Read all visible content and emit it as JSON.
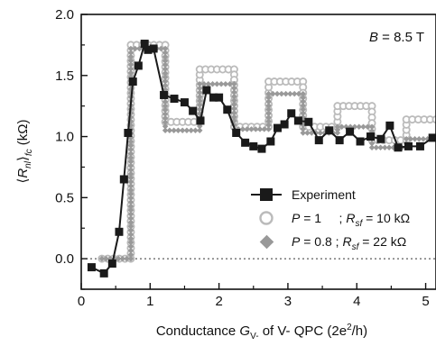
{
  "chart_data": {
    "type": "line",
    "xlabel": {
      "prefix": "Conductance ",
      "var": "G",
      "sub": "V-",
      "suffix": " of V- QPC  (2e",
      "sup": "2",
      "end": "/h)"
    },
    "ylabel": {
      "open": "⟨",
      "var": "R",
      "sub": "nl",
      "close": "⟩",
      "sub2": "fc",
      "unit": "(kΩ)"
    },
    "xlim": [
      0,
      5.15
    ],
    "ylim": [
      -0.25,
      2.0
    ],
    "xticks": [
      0,
      1,
      2,
      3,
      4,
      5
    ],
    "yticks": [
      0.0,
      0.5,
      1.0,
      1.5,
      2.0
    ],
    "xtick_labels": [
      "0",
      "1",
      "2",
      "3",
      "4",
      "5"
    ],
    "ytick_labels": [
      "0.0",
      "0.5",
      "1.0",
      "1.5",
      "2.0"
    ],
    "annotation": {
      "var": "B",
      "rest": " = 8.5 T"
    },
    "zero_line": true,
    "legend_position": "bottom-right",
    "series": [
      {
        "legend": {
          "text": "Experiment"
        },
        "style": "line-square",
        "color": "#1a1a1a",
        "x": [
          0.15,
          0.33,
          0.45,
          0.55,
          0.62,
          0.68,
          0.75,
          0.83,
          0.92,
          0.97,
          1.05,
          1.2,
          1.35,
          1.5,
          1.62,
          1.73,
          1.82,
          1.92,
          2.0,
          2.12,
          2.25,
          2.38,
          2.5,
          2.62,
          2.75,
          2.85,
          2.95,
          3.05,
          3.15,
          3.3,
          3.45,
          3.6,
          3.75,
          3.9,
          4.05,
          4.2,
          4.35,
          4.48,
          4.6,
          4.75,
          4.92,
          5.1
        ],
        "y": [
          -0.07,
          -0.12,
          -0.04,
          0.22,
          0.65,
          1.03,
          1.45,
          1.58,
          1.76,
          1.71,
          1.72,
          1.34,
          1.31,
          1.28,
          1.21,
          1.13,
          1.38,
          1.32,
          1.32,
          1.22,
          1.03,
          0.95,
          0.92,
          0.9,
          0.96,
          1.07,
          1.1,
          1.19,
          1.13,
          1.12,
          0.97,
          1.05,
          0.97,
          1.04,
          0.96,
          1.0,
          0.98,
          1.09,
          0.91,
          0.92,
          0.92,
          0.99
        ]
      },
      {
        "legend": {
          "pre": "",
          "var": "P",
          "mid": " = 1     ; ",
          "rvar": "R",
          "rsub": "sf",
          "post": " = 10 kΩ"
        },
        "style": "staircase-open-circle",
        "color": "#bbbbbb",
        "x": [
          0.3,
          0.72,
          0.72,
          1.22,
          1.22,
          1.72,
          1.72,
          2.22,
          2.22,
          2.72,
          2.72,
          3.22,
          3.22,
          3.72,
          3.72,
          4.22,
          4.22,
          4.72,
          4.72,
          5.15
        ],
        "y": [
          0.0,
          0.0,
          1.75,
          1.75,
          1.12,
          1.12,
          1.55,
          1.55,
          1.08,
          1.08,
          1.45,
          1.45,
          1.08,
          1.08,
          1.25,
          1.25,
          0.97,
          0.97,
          1.14,
          1.14
        ]
      },
      {
        "legend": {
          "pre": "",
          "var": "P",
          "mid": " = 0.8 ; ",
          "rvar": "R",
          "rsub": "sf",
          "post": " = 22 kΩ"
        },
        "style": "staircase-filled-diamond",
        "color": "#999999",
        "x": [
          0.3,
          0.72,
          0.72,
          1.22,
          1.22,
          1.72,
          1.72,
          2.22,
          2.22,
          2.72,
          2.72,
          3.22,
          3.22,
          3.72,
          3.72,
          4.22,
          4.22,
          4.72,
          4.72,
          5.15
        ],
        "y": [
          0.0,
          0.0,
          1.72,
          1.72,
          1.05,
          1.05,
          1.43,
          1.43,
          1.06,
          1.06,
          1.35,
          1.35,
          1.03,
          1.03,
          1.08,
          1.08,
          0.91,
          0.91,
          0.98,
          0.98
        ]
      }
    ]
  }
}
